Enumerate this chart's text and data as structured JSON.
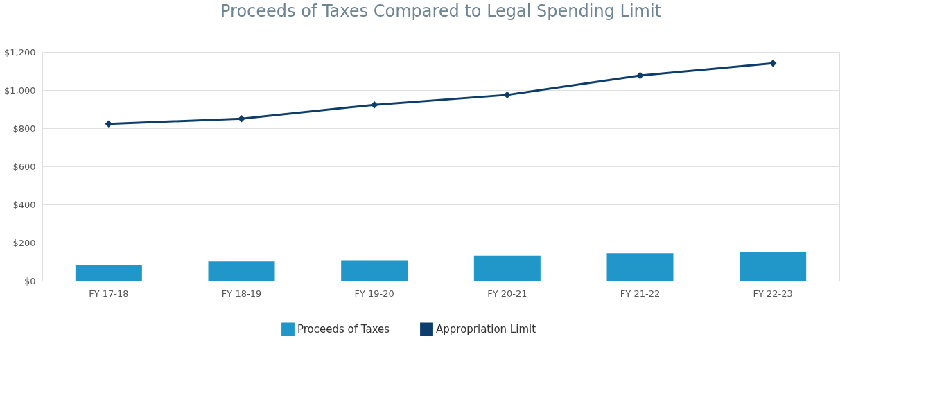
{
  "chart_data": {
    "type": "bar",
    "title": "Proceeds of Taxes Compared to Legal Spending Limit",
    "categories": [
      "FY 17-18",
      "FY 18-19",
      "FY 19-20",
      "FY 20-21",
      "FY 21-22",
      "FY 22-23"
    ],
    "series": [
      {
        "name": "Proceeds of Taxes",
        "color": "#2196c8",
        "values": [
          80,
          101,
          107,
          132,
          145,
          153
        ]
      },
      {
        "name": "Appropriation Limit",
        "type": "line",
        "color": "#0d3d6b",
        "marker": "diamond",
        "values": [
          823,
          850,
          923,
          975,
          1076,
          1141
        ]
      }
    ],
    "ylim": [
      0,
      1200
    ],
    "yticks": [
      {
        "value": 0,
        "label": "$0"
      },
      {
        "value": 200,
        "label": "$200"
      },
      {
        "value": 400,
        "label": "$400"
      },
      {
        "value": 600,
        "label": "$600"
      },
      {
        "value": 800,
        "label": "$800"
      },
      {
        "value": 1000,
        "label": "$1,000"
      },
      {
        "value": 1200,
        "label": "$1,200"
      }
    ],
    "grid": "y",
    "legend": "bottom"
  }
}
